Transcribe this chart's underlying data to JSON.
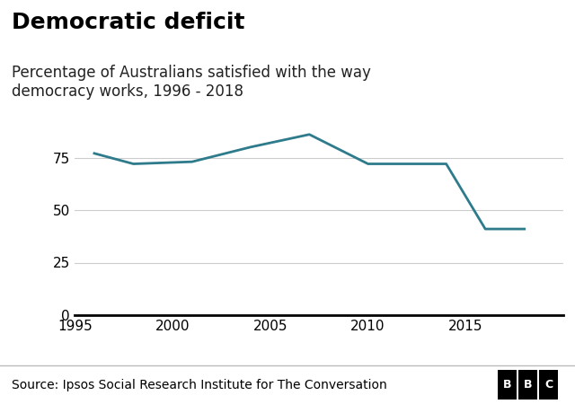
{
  "title": "Democratic deficit",
  "subtitle": "Percentage of Australians satisfied with the way\ndemocracy works, 1996 - 2018",
  "x_values": [
    1996,
    1998,
    2001,
    2004,
    2007,
    2010,
    2014,
    2016,
    2018
  ],
  "y_values": [
    77,
    72,
    73,
    80,
    86,
    72,
    72,
    41,
    41
  ],
  "line_color": "#2e7b8c",
  "line_width": 2.0,
  "xlim": [
    1995,
    2020
  ],
  "ylim": [
    0,
    100
  ],
  "yticks": [
    0,
    25,
    50,
    75
  ],
  "xticks": [
    1995,
    2000,
    2005,
    2010,
    2015
  ],
  "source_text": "Source: Ipsos Social Research Institute for The Conversation",
  "bbc_text": "BBC",
  "background_color": "#ffffff",
  "footer_color": "#eeeeee",
  "grid_color": "#cccccc",
  "title_fontsize": 18,
  "subtitle_fontsize": 12,
  "tick_fontsize": 11,
  "source_fontsize": 10
}
